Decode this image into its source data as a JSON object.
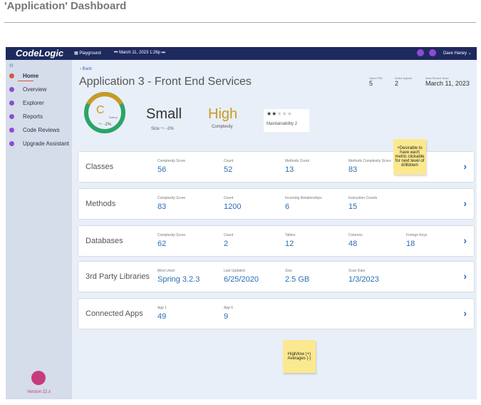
{
  "page": {
    "title": "'Application' Dashboard"
  },
  "topbar": {
    "logo": "CodeLogic",
    "workspace": "Playground",
    "timestamp": "March 11, 2023 1:26p",
    "user": "Dave Haney"
  },
  "sidebar": {
    "items": [
      "Home",
      "Overview",
      "Explorer",
      "Reports",
      "Code Reviews",
      "Upgrade Assistant"
    ],
    "version": "Version 22.x"
  },
  "header": {
    "back": "Back",
    "app_name": "Application 3 - Front End Services",
    "stats": [
      {
        "label": "Open PRs",
        "value": 5
      },
      {
        "label": "Active Agents",
        "value": 2
      },
      {
        "label": "Most Recent Scan",
        "value": "March 11, 2023"
      }
    ]
  },
  "summary": {
    "rating": {
      "grade": "C",
      "label": "Rating",
      "change": "-2%"
    },
    "size": {
      "value": "Small",
      "label": "Size",
      "change": "-2%"
    },
    "complexity": {
      "value": "High",
      "label": "Complexity"
    },
    "maintainability": {
      "label": "Maintainability",
      "value": 2
    }
  },
  "cards": [
    {
      "name": "Classes",
      "metrics": [
        {
          "label": "Complexity Score",
          "value": 56
        },
        {
          "label": "Count",
          "value": 52
        },
        {
          "label": "Methods Count",
          "value": 13
        },
        {
          "label": "Methods Complexity Score",
          "value": 83
        }
      ]
    },
    {
      "name": "Methods",
      "metrics": [
        {
          "label": "Complexity Score",
          "value": 83
        },
        {
          "label": "Count",
          "value": 1200
        },
        {
          "label": "Incoming Relationships",
          "value": 6
        },
        {
          "label": "Instruction Counts",
          "value": 15
        }
      ]
    },
    {
      "name": "Databases",
      "metrics": [
        {
          "label": "Complexity Score",
          "value": 62
        },
        {
          "label": "Count",
          "value": 2
        },
        {
          "label": "Tables",
          "value": 12
        },
        {
          "label": "Columns",
          "value": 48
        },
        {
          "label": "Foreign Keys",
          "value": 18
        }
      ]
    },
    {
      "name": "3rd Party Libraries",
      "metrics": [
        {
          "label": "Most Used",
          "value": "Spring 3.2.3"
        },
        {
          "label": "Last Updated",
          "value": "6/25/2020"
        },
        {
          "label": "Size",
          "value": "2.5 GB"
        },
        {
          "label": "Scan Date",
          "value": "1/3/2023"
        }
      ]
    },
    {
      "name": "Connected Apps",
      "metrics": [
        {
          "label": "App 1",
          "value": 49
        },
        {
          "label": "App 6",
          "value": 9
        }
      ]
    }
  ],
  "notes": [
    "+Desirable to have each metric clickable for next level of drilldown",
    "High/low (+) Averages (-)"
  ]
}
